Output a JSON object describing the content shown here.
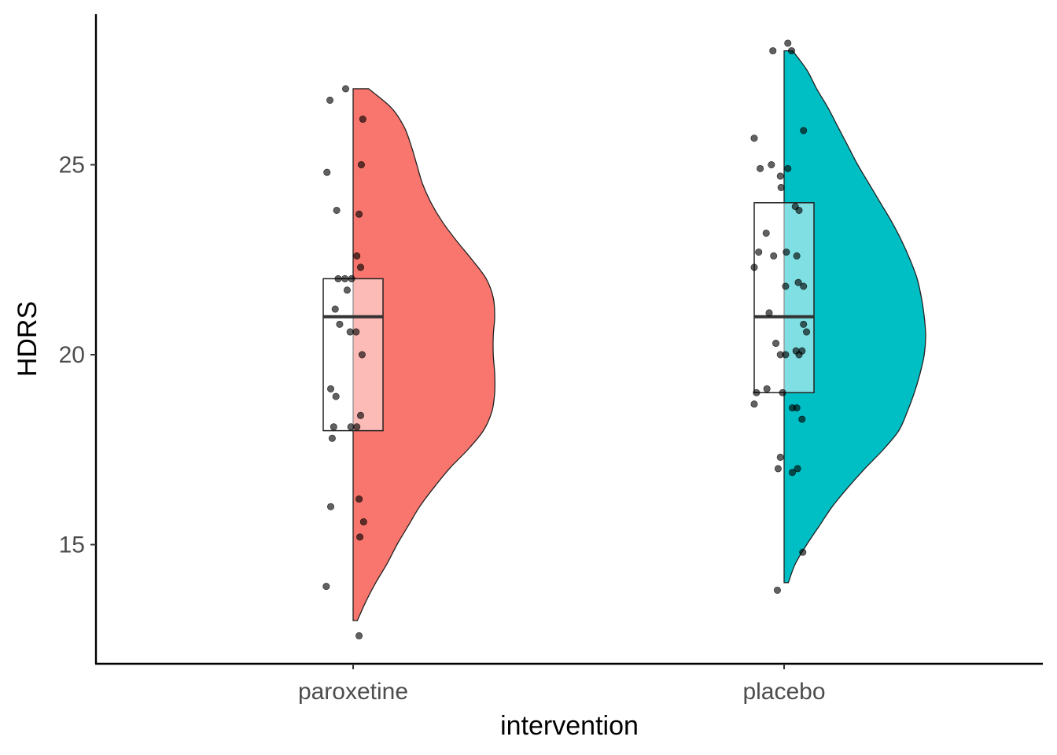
{
  "chart_data": {
    "type": "raincloud",
    "title": "",
    "xlabel": "intervention",
    "ylabel": "HDRS",
    "ylim": [
      12.0,
      29.0
    ],
    "yticks": [
      15,
      20,
      25
    ],
    "grid": false,
    "legend": "none",
    "categories": [
      "paroxetine",
      "placebo"
    ],
    "groups": [
      {
        "label": "paroxetine",
        "color": "#F8766D",
        "box": {
          "q1": 18,
          "median": 21,
          "q3": 22
        },
        "density": {
          "range": [
            13,
            27
          ],
          "profile": [
            [
              13.0,
              0.03
            ],
            [
              13.5,
              0.09
            ],
            [
              14.0,
              0.16
            ],
            [
              14.5,
              0.24
            ],
            [
              15.0,
              0.31
            ],
            [
              15.5,
              0.39
            ],
            [
              16.0,
              0.47
            ],
            [
              16.5,
              0.57
            ],
            [
              17.0,
              0.68
            ],
            [
              17.5,
              0.81
            ],
            [
              18.0,
              0.92
            ],
            [
              18.5,
              0.98
            ],
            [
              19.0,
              1.0
            ],
            [
              19.5,
              1.0
            ],
            [
              20.0,
              0.99
            ],
            [
              20.5,
              0.99
            ],
            [
              21.0,
              1.0
            ],
            [
              21.5,
              0.99
            ],
            [
              22.0,
              0.94
            ],
            [
              22.5,
              0.84
            ],
            [
              23.0,
              0.73
            ],
            [
              23.5,
              0.63
            ],
            [
              24.0,
              0.55
            ],
            [
              24.5,
              0.49
            ],
            [
              25.0,
              0.45
            ],
            [
              25.5,
              0.41
            ],
            [
              26.0,
              0.36
            ],
            [
              26.5,
              0.27
            ],
            [
              27.0,
              0.11
            ]
          ]
        },
        "points": [
          [
            -0.1,
            27.0
          ],
          [
            -0.31,
            26.7
          ],
          [
            0.13,
            26.2
          ],
          [
            0.11,
            25.0
          ],
          [
            -0.35,
            24.8
          ],
          [
            -0.22,
            23.8
          ],
          [
            0.08,
            23.7
          ],
          [
            0.05,
            22.6
          ],
          [
            0.1,
            22.3
          ],
          [
            -0.2,
            22.0
          ],
          [
            -0.11,
            22.0
          ],
          [
            -0.02,
            22.0
          ],
          [
            -0.08,
            21.7
          ],
          [
            -0.24,
            21.2
          ],
          [
            -0.18,
            20.8
          ],
          [
            -0.04,
            20.6
          ],
          [
            0.04,
            20.6
          ],
          [
            0.12,
            20.0
          ],
          [
            -0.3,
            19.1
          ],
          [
            -0.23,
            18.9
          ],
          [
            0.1,
            18.4
          ],
          [
            -0.26,
            18.1
          ],
          [
            -0.03,
            18.1
          ],
          [
            0.05,
            18.1
          ],
          [
            -0.28,
            17.8
          ],
          [
            -0.3,
            16.0
          ],
          [
            0.08,
            16.2
          ],
          [
            0.14,
            15.6
          ],
          [
            0.09,
            15.2
          ],
          [
            -0.36,
            13.9
          ],
          [
            0.08,
            12.6
          ]
        ]
      },
      {
        "label": "placebo",
        "color": "#00BFC4",
        "box": {
          "q1": 19,
          "median": 21,
          "q3": 24
        },
        "density": {
          "range": [
            14,
            28
          ],
          "profile": [
            [
              14.0,
              0.03
            ],
            [
              14.5,
              0.08
            ],
            [
              15.0,
              0.16
            ],
            [
              15.5,
              0.25
            ],
            [
              16.0,
              0.34
            ],
            [
              16.5,
              0.45
            ],
            [
              17.0,
              0.57
            ],
            [
              17.5,
              0.7
            ],
            [
              18.0,
              0.81
            ],
            [
              18.5,
              0.87
            ],
            [
              19.0,
              0.92
            ],
            [
              19.5,
              0.96
            ],
            [
              20.0,
              0.99
            ],
            [
              20.5,
              1.0
            ],
            [
              21.0,
              0.99
            ],
            [
              21.5,
              0.97
            ],
            [
              22.0,
              0.94
            ],
            [
              22.5,
              0.89
            ],
            [
              23.0,
              0.83
            ],
            [
              23.5,
              0.76
            ],
            [
              24.0,
              0.68
            ],
            [
              24.5,
              0.6
            ],
            [
              25.0,
              0.52
            ],
            [
              25.5,
              0.45
            ],
            [
              26.0,
              0.38
            ],
            [
              26.5,
              0.31
            ],
            [
              27.0,
              0.23
            ],
            [
              27.5,
              0.16
            ],
            [
              28.0,
              0.06
            ]
          ]
        },
        "points": [
          [
            0.05,
            28.2
          ],
          [
            -0.15,
            28.0
          ],
          [
            0.1,
            28.0
          ],
          [
            0.26,
            25.9
          ],
          [
            -0.4,
            25.7
          ],
          [
            -0.17,
            25.0
          ],
          [
            -0.32,
            24.9
          ],
          [
            0.05,
            24.9
          ],
          [
            -0.05,
            24.7
          ],
          [
            -0.04,
            24.4
          ],
          [
            0.2,
            23.8
          ],
          [
            0.15,
            23.9
          ],
          [
            -0.24,
            23.2
          ],
          [
            0.03,
            22.7
          ],
          [
            -0.14,
            22.6
          ],
          [
            -0.34,
            22.7
          ],
          [
            0.17,
            22.6
          ],
          [
            -0.4,
            22.3
          ],
          [
            0.02,
            21.8
          ],
          [
            0.19,
            21.9
          ],
          [
            0.26,
            21.8
          ],
          [
            -0.2,
            21.1
          ],
          [
            0.26,
            20.8
          ],
          [
            0.3,
            20.6
          ],
          [
            -0.11,
            20.3
          ],
          [
            0.24,
            20.1
          ],
          [
            0.16,
            20.1
          ],
          [
            -0.05,
            20.0
          ],
          [
            0.02,
            20.0
          ],
          [
            0.2,
            20.0
          ],
          [
            -0.23,
            19.1
          ],
          [
            -0.37,
            19.0
          ],
          [
            -0.02,
            19.0
          ],
          [
            -0.4,
            18.7
          ],
          [
            0.11,
            18.6
          ],
          [
            0.17,
            18.6
          ],
          [
            0.24,
            18.3
          ],
          [
            -0.05,
            17.3
          ],
          [
            -0.08,
            17.0
          ],
          [
            0.11,
            16.9
          ],
          [
            0.18,
            17.0
          ],
          [
            0.25,
            14.8
          ],
          [
            -0.09,
            13.8
          ]
        ]
      }
    ]
  }
}
